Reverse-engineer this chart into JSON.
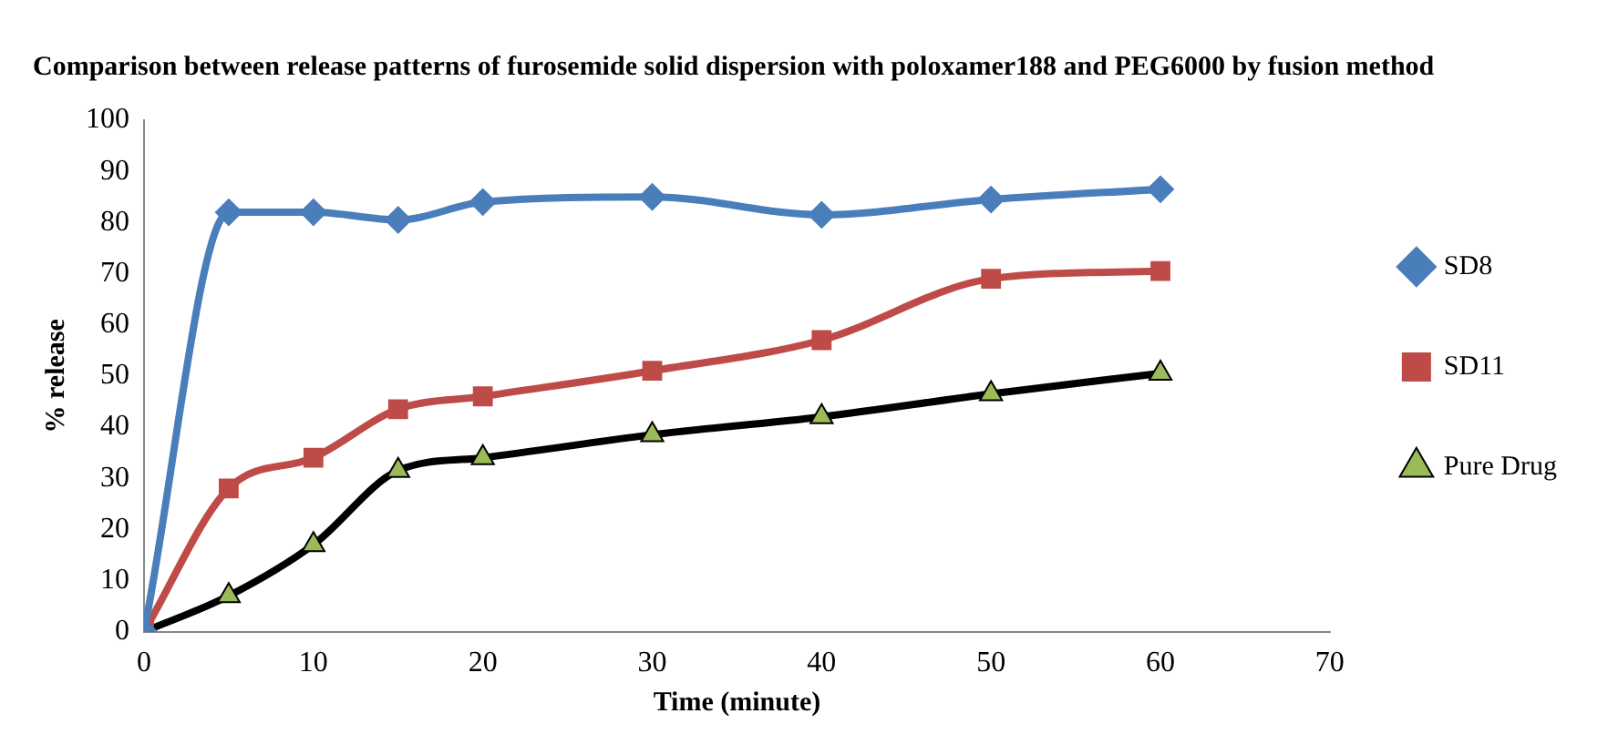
{
  "chart_data": {
    "type": "line",
    "title": "Comparison between release patterns of furosemide solid dispersion with poloxamer188 and PEG6000 by fusion method",
    "xlabel": "Time (minute)",
    "ylabel": "% release",
    "x": [
      0,
      5,
      10,
      15,
      20,
      30,
      40,
      50,
      60
    ],
    "xlim": [
      0,
      70
    ],
    "xticks": [
      0,
      10,
      20,
      30,
      40,
      50,
      60,
      70
    ],
    "ylim": [
      0,
      100
    ],
    "yticks": [
      0,
      10,
      20,
      30,
      40,
      50,
      60,
      70,
      80,
      90,
      100
    ],
    "grid": false,
    "legend": "right",
    "series": [
      {
        "name": "SD8",
        "color": "#4a7ebb",
        "marker": "diamond",
        "values": [
          0,
          82,
          82,
          80.5,
          84,
          85,
          81.5,
          84.5,
          86.5
        ]
      },
      {
        "name": "SD11",
        "color": "#be4b48",
        "marker": "square",
        "values": [
          0,
          28,
          34,
          43.5,
          46,
          51,
          57,
          69,
          70.5
        ]
      },
      {
        "name": "Pure Drug",
        "color": "#000000",
        "colors": [
          "#9bbb59",
          "#9bbb59",
          "#9bbb59",
          "#9bbb59",
          "#9bbb59",
          "#9bbb59",
          "#9bbb59",
          "#9bbb59",
          "#9bbb59"
        ],
        "marker": "triangle",
        "values": [
          0,
          7,
          17,
          31.5,
          34,
          38.5,
          42,
          46.5,
          50.5
        ]
      }
    ]
  }
}
